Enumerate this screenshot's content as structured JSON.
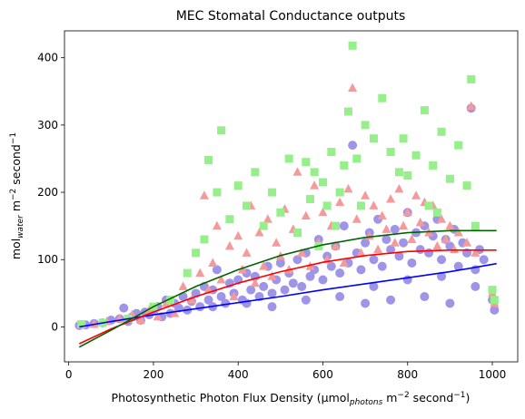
{
  "chart_data": {
    "type": "scatter",
    "title": "MEC Stomatal Conductance outputs",
    "xlabel": {
      "main": "Photosynthetic Photon Flux Density (μmol",
      "sub": "photons",
      "unit_mid": " m",
      "sup1": "−2",
      "unit_end": " second",
      "sup2": "−1",
      "close": ")"
    },
    "ylabel": {
      "main": "mol",
      "sub": "water",
      "unit_mid": " m",
      "sup1": "−2",
      "unit_end": " second",
      "sup2": "−1"
    },
    "xlim": [
      -10,
      1060
    ],
    "ylim": [
      -52,
      440
    ],
    "xticks": [
      0,
      200,
      400,
      600,
      800,
      1000
    ],
    "yticks": [
      0,
      100,
      200,
      300,
      400
    ],
    "grid": false,
    "legend": "none",
    "scatter_series": [
      {
        "marker": "circle",
        "color": "#9f95e8",
        "points": [
          [
            25,
            2
          ],
          [
            40,
            3
          ],
          [
            60,
            5
          ],
          [
            80,
            6
          ],
          [
            100,
            10
          ],
          [
            120,
            12
          ],
          [
            130,
            28
          ],
          [
            140,
            8
          ],
          [
            150,
            15
          ],
          [
            160,
            20
          ],
          [
            170,
            10
          ],
          [
            180,
            22
          ],
          [
            190,
            18
          ],
          [
            200,
            25
          ],
          [
            210,
            30
          ],
          [
            220,
            15
          ],
          [
            230,
            40
          ],
          [
            240,
            20
          ],
          [
            250,
            35
          ],
          [
            260,
            28
          ],
          [
            270,
            45
          ],
          [
            280,
            25
          ],
          [
            290,
            38
          ],
          [
            300,
            50
          ],
          [
            310,
            30
          ],
          [
            320,
            60
          ],
          [
            330,
            40
          ],
          [
            340,
            55
          ],
          [
            350,
            85
          ],
          [
            360,
            45
          ],
          [
            370,
            35
          ],
          [
            380,
            65
          ],
          [
            390,
            50
          ],
          [
            400,
            70
          ],
          [
            410,
            40
          ],
          [
            420,
            80
          ],
          [
            430,
            55
          ],
          [
            440,
            75
          ],
          [
            450,
            45
          ],
          [
            460,
            60
          ],
          [
            470,
            90
          ],
          [
            480,
            50
          ],
          [
            490,
            70
          ],
          [
            500,
            95
          ],
          [
            510,
            55
          ],
          [
            520,
            80
          ],
          [
            530,
            65
          ],
          [
            540,
            100
          ],
          [
            550,
            60
          ],
          [
            560,
            110
          ],
          [
            570,
            75
          ],
          [
            580,
            85
          ],
          [
            590,
            130
          ],
          [
            600,
            70
          ],
          [
            610,
            105
          ],
          [
            620,
            90
          ],
          [
            630,
            120
          ],
          [
            640,
            80
          ],
          [
            650,
            150
          ],
          [
            660,
            95
          ],
          [
            670,
            270
          ],
          [
            680,
            110
          ],
          [
            690,
            85
          ],
          [
            700,
            125
          ],
          [
            710,
            140
          ],
          [
            720,
            100
          ],
          [
            730,
            160
          ],
          [
            740,
            90
          ],
          [
            750,
            130
          ],
          [
            760,
            115
          ],
          [
            770,
            145
          ],
          [
            780,
            105
          ],
          [
            790,
            125
          ],
          [
            800,
            170
          ],
          [
            810,
            95
          ],
          [
            820,
            140
          ],
          [
            830,
            115
          ],
          [
            840,
            150
          ],
          [
            850,
            110
          ],
          [
            860,
            135
          ],
          [
            870,
            160
          ],
          [
            880,
            100
          ],
          [
            890,
            130
          ],
          [
            900,
            120
          ],
          [
            910,
            145
          ],
          [
            920,
            90
          ],
          [
            930,
            125
          ],
          [
            940,
            110
          ],
          [
            950,
            325
          ],
          [
            960,
            85
          ],
          [
            970,
            115
          ],
          [
            980,
            100
          ],
          [
            1000,
            40
          ],
          [
            1005,
            25
          ],
          [
            340,
            30
          ],
          [
            420,
            35
          ],
          [
            480,
            30
          ],
          [
            560,
            40
          ],
          [
            640,
            45
          ],
          [
            700,
            35
          ],
          [
            760,
            40
          ],
          [
            840,
            45
          ],
          [
            900,
            35
          ],
          [
            960,
            60
          ],
          [
            720,
            60
          ],
          [
            800,
            70
          ],
          [
            880,
            75
          ]
        ]
      },
      {
        "marker": "triangle",
        "color": "#f59a9a",
        "points": [
          [
            30,
            3
          ],
          [
            60,
            4
          ],
          [
            90,
            8
          ],
          [
            120,
            12
          ],
          [
            150,
            18
          ],
          [
            170,
            10
          ],
          [
            190,
            25
          ],
          [
            210,
            15
          ],
          [
            230,
            35
          ],
          [
            250,
            20
          ],
          [
            270,
            60
          ],
          [
            290,
            40
          ],
          [
            310,
            80
          ],
          [
            320,
            195
          ],
          [
            330,
            55
          ],
          [
            340,
            95
          ],
          [
            350,
            150
          ],
          [
            360,
            70
          ],
          [
            380,
            120
          ],
          [
            390,
            45
          ],
          [
            400,
            135
          ],
          [
            410,
            85
          ],
          [
            420,
            110
          ],
          [
            430,
            180
          ],
          [
            440,
            65
          ],
          [
            450,
            140
          ],
          [
            460,
            90
          ],
          [
            470,
            160
          ],
          [
            480,
            75
          ],
          [
            490,
            125
          ],
          [
            500,
            105
          ],
          [
            510,
            175
          ],
          [
            520,
            85
          ],
          [
            530,
            145
          ],
          [
            540,
            230
          ],
          [
            550,
            110
          ],
          [
            560,
            165
          ],
          [
            570,
            90
          ],
          [
            580,
            210
          ],
          [
            590,
            125
          ],
          [
            600,
            170
          ],
          [
            610,
            100
          ],
          [
            620,
            150
          ],
          [
            630,
            120
          ],
          [
            640,
            185
          ],
          [
            650,
            95
          ],
          [
            660,
            205
          ],
          [
            670,
            355
          ],
          [
            680,
            160
          ],
          [
            690,
            110
          ],
          [
            700,
            195
          ],
          [
            710,
            135
          ],
          [
            720,
            180
          ],
          [
            730,
            115
          ],
          [
            740,
            165
          ],
          [
            750,
            145
          ],
          [
            760,
            190
          ],
          [
            770,
            125
          ],
          [
            780,
            205
          ],
          [
            790,
            150
          ],
          [
            800,
            170
          ],
          [
            810,
            130
          ],
          [
            820,
            195
          ],
          [
            830,
            155
          ],
          [
            840,
            185
          ],
          [
            850,
            140
          ],
          [
            860,
            180
          ],
          [
            870,
            120
          ],
          [
            880,
            160
          ],
          [
            890,
            130
          ],
          [
            900,
            150
          ],
          [
            910,
            115
          ],
          [
            920,
            140
          ],
          [
            940,
            125
          ],
          [
            950,
            328
          ],
          [
            960,
            110
          ],
          [
            1000,
            50
          ],
          [
            1005,
            35
          ]
        ]
      },
      {
        "marker": "square",
        "color": "#97ef8b",
        "points": [
          [
            30,
            4
          ],
          [
            80,
            6
          ],
          [
            140,
            12
          ],
          [
            200,
            30
          ],
          [
            240,
            40
          ],
          [
            280,
            80
          ],
          [
            300,
            110
          ],
          [
            320,
            130
          ],
          [
            330,
            248
          ],
          [
            350,
            200
          ],
          [
            360,
            292
          ],
          [
            380,
            160
          ],
          [
            400,
            210
          ],
          [
            420,
            180
          ],
          [
            440,
            230
          ],
          [
            460,
            150
          ],
          [
            480,
            200
          ],
          [
            500,
            170
          ],
          [
            520,
            250
          ],
          [
            540,
            140
          ],
          [
            560,
            245
          ],
          [
            570,
            190
          ],
          [
            580,
            230
          ],
          [
            590,
            120
          ],
          [
            600,
            215
          ],
          [
            610,
            180
          ],
          [
            620,
            260
          ],
          [
            630,
            150
          ],
          [
            640,
            200
          ],
          [
            650,
            240
          ],
          [
            660,
            320
          ],
          [
            670,
            418
          ],
          [
            680,
            250
          ],
          [
            690,
            180
          ],
          [
            700,
            300
          ],
          [
            720,
            280
          ],
          [
            740,
            340
          ],
          [
            760,
            260
          ],
          [
            780,
            230
          ],
          [
            790,
            280
          ],
          [
            800,
            225
          ],
          [
            820,
            255
          ],
          [
            840,
            322
          ],
          [
            850,
            180
          ],
          [
            860,
            240
          ],
          [
            870,
            170
          ],
          [
            880,
            290
          ],
          [
            900,
            220
          ],
          [
            920,
            270
          ],
          [
            940,
            210
          ],
          [
            950,
            368
          ],
          [
            960,
            150
          ],
          [
            1000,
            55
          ],
          [
            1005,
            40
          ]
        ]
      }
    ],
    "line_series": [
      {
        "color": "#0000ff",
        "x": [
          25,
          100,
          200,
          300,
          400,
          500,
          600,
          700,
          800,
          900,
          1010
        ],
        "y": [
          0,
          8,
          18,
          27,
          36,
          45,
          55,
          64,
          73,
          82,
          94
        ]
      },
      {
        "color": "#ff0000",
        "x": [
          25,
          100,
          200,
          300,
          400,
          500,
          600,
          700,
          800,
          900,
          1010
        ],
        "y": [
          -25,
          -3,
          22,
          45,
          65,
          82,
          96,
          106,
          112,
          114,
          114
        ]
      },
      {
        "color": "#006400",
        "x": [
          25,
          100,
          200,
          300,
          400,
          500,
          600,
          700,
          800,
          900,
          1010
        ],
        "y": [
          -30,
          -5,
          30,
          60,
          85,
          106,
          122,
          133,
          140,
          143,
          143
        ]
      }
    ]
  }
}
